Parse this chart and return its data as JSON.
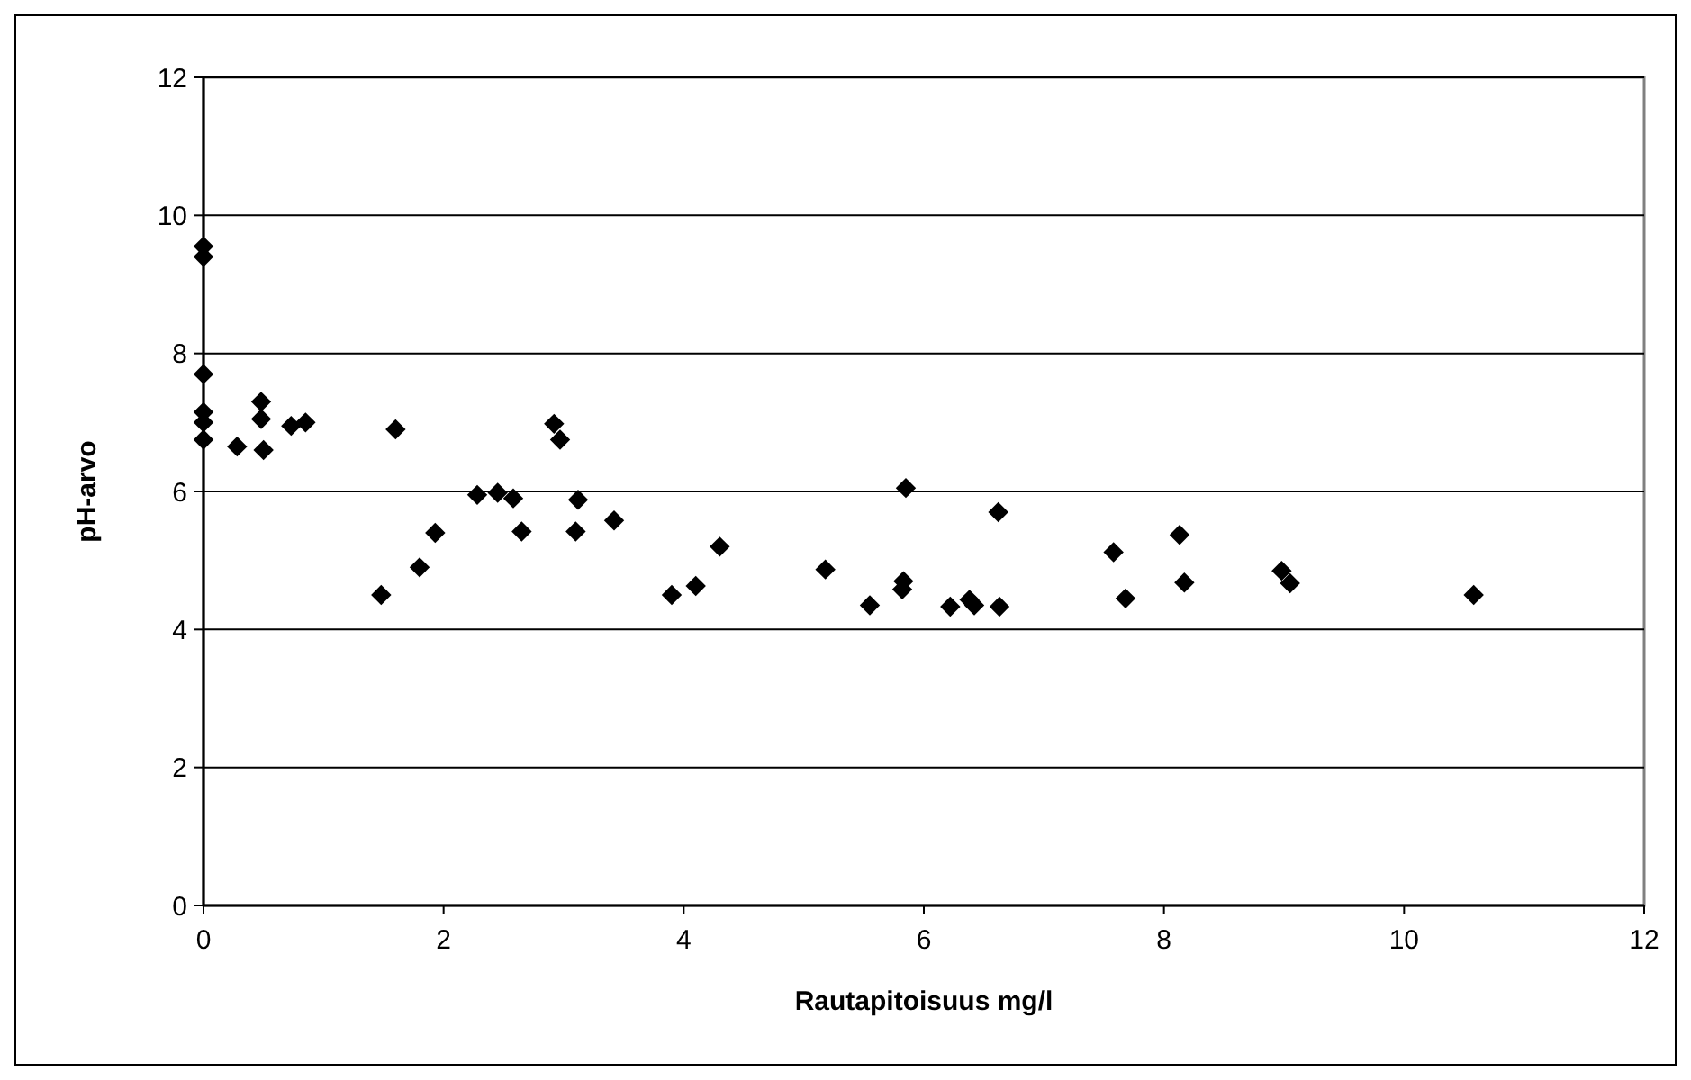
{
  "chart_data": {
    "type": "scatter",
    "xlabel": "Rautapitoisuus mg/l",
    "ylabel": "pH-arvo",
    "x": [
      0,
      0,
      0,
      0,
      0,
      0,
      0.28,
      0.48,
      0.48,
      0.5,
      0.73,
      0.85,
      1.48,
      1.6,
      1.8,
      1.93,
      2.28,
      2.45,
      2.58,
      2.65,
      2.92,
      2.97,
      3.1,
      3.12,
      3.42,
      3.9,
      4.1,
      4.3,
      5.18,
      5.55,
      5.82,
      5.83,
      5.85,
      6.22,
      6.38,
      6.42,
      6.62,
      6.63,
      7.58,
      7.68,
      8.13,
      8.17,
      8.98,
      9.05,
      10.58
    ],
    "values": [
      9.55,
      9.4,
      7.7,
      7.15,
      7.0,
      6.75,
      6.65,
      7.3,
      7.05,
      6.6,
      6.95,
      7.0,
      4.5,
      6.9,
      4.9,
      5.4,
      5.95,
      5.98,
      5.9,
      5.42,
      6.98,
      6.75,
      5.42,
      5.88,
      5.58,
      4.5,
      4.63,
      5.2,
      4.87,
      4.35,
      4.58,
      4.7,
      6.05,
      4.33,
      4.43,
      4.35,
      5.7,
      4.33,
      5.12,
      4.45,
      5.37,
      4.68,
      4.85,
      4.67,
      4.5
    ],
    "color": "#000000",
    "marker": "diamond",
    "xlim": [
      0,
      12
    ],
    "xticks": [
      0,
      2,
      4,
      6,
      8,
      10,
      12
    ],
    "ylim": [
      0,
      12
    ],
    "yticks": [
      0,
      2,
      4,
      6,
      8,
      10,
      12
    ],
    "grid": "y"
  }
}
